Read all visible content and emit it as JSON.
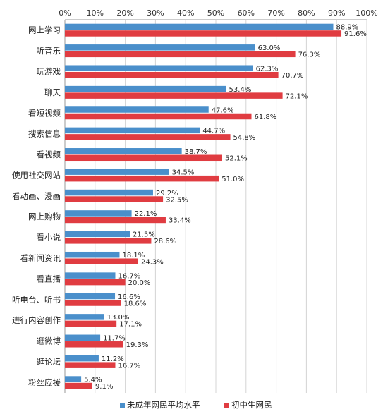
{
  "chart_data": {
    "type": "bar",
    "orientation": "horizontal",
    "categories": [
      "网上学习",
      "听音乐",
      "玩游戏",
      "聊天",
      "看短视频",
      "搜索信息",
      "看视频",
      "使用社交网站",
      "看动画、漫画",
      "网上购物",
      "看小说",
      "看新闻资讯",
      "看直播",
      "听电台、听书",
      "进行内容创作",
      "逛微博",
      "逛论坛",
      "粉丝应援"
    ],
    "series": [
      {
        "name": "未成年网民平均水平",
        "color": "#4a8fcb",
        "values": [
          88.9,
          63.0,
          62.3,
          53.4,
          47.6,
          44.7,
          38.7,
          34.5,
          29.2,
          22.1,
          21.5,
          18.1,
          16.7,
          16.6,
          13.0,
          11.7,
          11.2,
          5.4
        ],
        "labels": [
          "88.9%",
          "63.0%",
          "62.3%",
          "53.4%",
          "47.6%",
          "44.7%",
          "38.7%",
          "34.5%",
          "29.2%",
          "22.1%",
          "21.5%",
          "18.1%",
          "16.7%",
          "16.6%",
          "13.0%",
          "11.7%",
          "11.2%",
          "5.4%"
        ]
      },
      {
        "name": "初中生网民",
        "color": "#e03c41",
        "values": [
          91.6,
          76.3,
          70.7,
          72.1,
          61.8,
          54.8,
          52.1,
          51.0,
          32.5,
          33.4,
          28.6,
          24.3,
          20.0,
          18.6,
          17.1,
          19.3,
          16.7,
          9.1
        ],
        "labels": [
          "91.6%",
          "76.3%",
          "70.7%",
          "72.1%",
          "61.8%",
          "54.8%",
          "52.1%",
          "51.0%",
          "32.5%",
          "33.4%",
          "28.6%",
          "24.3%",
          "20.0%",
          "18.6%",
          "17.1%",
          "19.3%",
          "16.7%",
          "9.1%"
        ]
      }
    ],
    "x_ticks": [
      "0%",
      "10%",
      "20%",
      "30%",
      "40%",
      "50%",
      "60%",
      "70%",
      "80%",
      "90%",
      "100%"
    ],
    "xlim": [
      0,
      100
    ],
    "grid": true,
    "axis_position": "top",
    "legend": "bottom"
  }
}
